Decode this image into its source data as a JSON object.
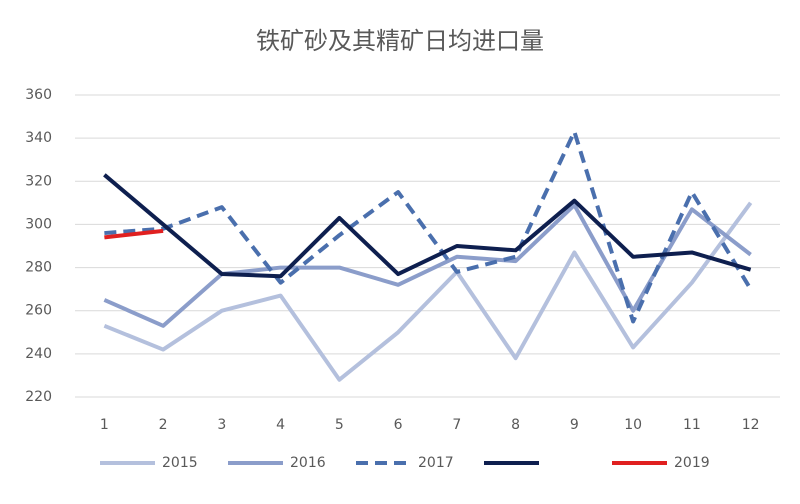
{
  "chart_data": {
    "type": "line",
    "title": "铁矿砂及其精矿日均进口量",
    "categories": [
      "1",
      "2",
      "3",
      "4",
      "5",
      "6",
      "7",
      "8",
      "9",
      "10",
      "11",
      "12"
    ],
    "series": [
      {
        "name": "2015",
        "color": "#b4c0dd",
        "dashed": false,
        "values": [
          253,
          242,
          260,
          267,
          228,
          250,
          278,
          238,
          287,
          243,
          273,
          310
        ]
      },
      {
        "name": "2016",
        "color": "#8b9dca",
        "dashed": false,
        "values": [
          265,
          253,
          277,
          280,
          280,
          272,
          285,
          283,
          309,
          260,
          307,
          286
        ]
      },
      {
        "name": "2017",
        "color": "#4a6fad",
        "dashed": true,
        "values": [
          296,
          298,
          308,
          273,
          295,
          315,
          278,
          285,
          343,
          255,
          315,
          270
        ]
      },
      {
        "name": null,
        "color": "#0e1f4f",
        "dashed": false,
        "values": [
          323,
          300,
          277,
          276,
          303,
          277,
          290,
          288,
          311,
          285,
          287,
          279
        ]
      },
      {
        "name": "2019",
        "color": "#e02020",
        "dashed": false,
        "values": [
          294,
          297,
          null,
          null,
          null,
          null,
          null,
          null,
          null,
          null,
          null,
          null
        ]
      }
    ],
    "ylim": [
      220,
      360
    ],
    "yticks": [
      220,
      240,
      260,
      280,
      300,
      320,
      340,
      360
    ],
    "grid": true,
    "legend": "bottom"
  }
}
